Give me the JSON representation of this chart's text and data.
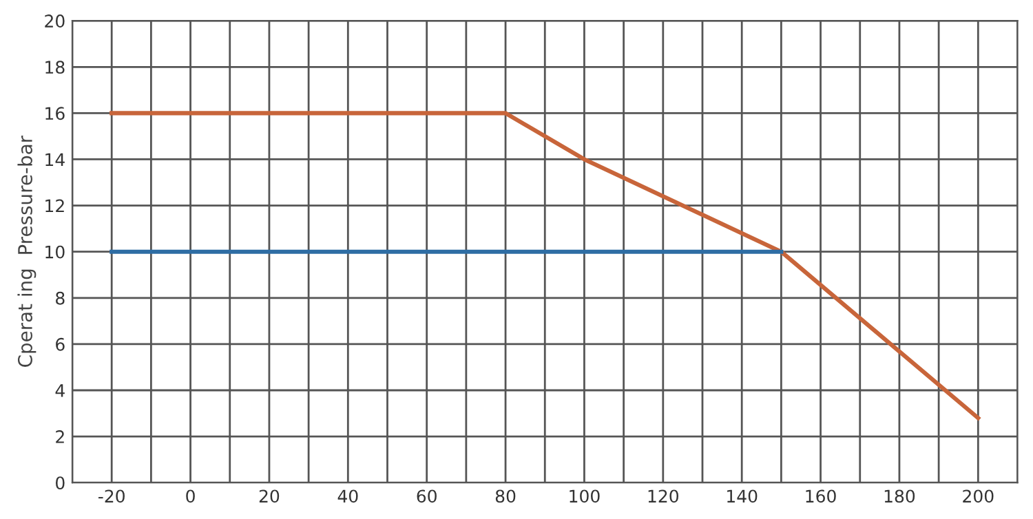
{
  "chart_data": {
    "type": "line",
    "ylabel": "Cperat ing  Pressure-bar",
    "series": [
      {
        "color": "#c8653a",
        "x": [
          -20,
          80,
          100,
          150,
          200
        ],
        "values": [
          16,
          16,
          14,
          10,
          2.8
        ]
      },
      {
        "color": "#2e6da4",
        "x": [
          -20,
          150
        ],
        "values": [
          10,
          10
        ]
      }
    ],
    "xlim": [
      -30,
      210
    ],
    "ylim": [
      0,
      20
    ],
    "xticks": [
      {
        "value": -30,
        "label": null
      },
      -20,
      {
        "value": -10,
        "label": null
      },
      0,
      {
        "value": 10,
        "label": null
      },
      20,
      {
        "value": 30,
        "label": null
      },
      40,
      {
        "value": 50,
        "label": null
      },
      60,
      {
        "value": 70,
        "label": null
      },
      80,
      {
        "value": 90,
        "label": null
      },
      100,
      {
        "value": 110,
        "label": null
      },
      120,
      {
        "value": 130,
        "label": null
      },
      140,
      {
        "value": 150,
        "label": null
      },
      160,
      {
        "value": 170,
        "label": null
      },
      180,
      {
        "value": 190,
        "label": null
      },
      200,
      {
        "value": 210,
        "label": null
      }
    ],
    "yticks": [
      0,
      2,
      4,
      6,
      8,
      10,
      12,
      14,
      16,
      18,
      20
    ],
    "grid": true,
    "legend": false,
    "marker": "none",
    "line_style": "solid"
  }
}
